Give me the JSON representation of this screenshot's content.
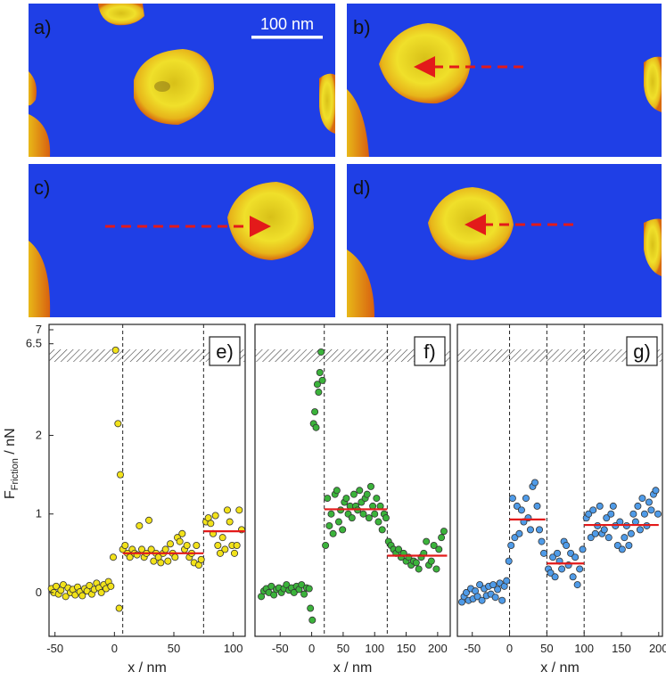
{
  "images": [
    {
      "label": "a)",
      "scalebar": "100 nm"
    },
    {
      "label": "b)"
    },
    {
      "label": "c)"
    },
    {
      "label": "d)"
    }
  ],
  "colors": {
    "substrate": "#1f3fe6",
    "particle": "#e8d21a",
    "arrow": "#e31a1a",
    "mean": "#e31a1a",
    "yellow": "#f2e21a",
    "green": "#3bb33b",
    "blue": "#4f9be8"
  },
  "ylabel_main": "F",
  "ylabel_sub": "Friction",
  "ylabel_unit": " / nN",
  "chart_data": [
    {
      "type": "scatter",
      "label": "e)",
      "xlabel": "x / nm",
      "xlim": [
        -55,
        110
      ],
      "xticks": [
        -50,
        0,
        50,
        100
      ],
      "ylim": [
        -0.5,
        7.0
      ],
      "yticks": [
        "0",
        "1",
        "2",
        "6.5",
        "7"
      ],
      "color": "yellow",
      "vlines": [
        7,
        75
      ],
      "means": [
        {
          "x": [
            7,
            75
          ],
          "y": 0.5
        },
        {
          "x": [
            75,
            110
          ],
          "y": 0.78
        }
      ],
      "points": [
        [
          -53,
          0.05
        ],
        [
          -51,
          0.0
        ],
        [
          -49,
          0.08
        ],
        [
          -47,
          -0.02
        ],
        [
          -45,
          0.03
        ],
        [
          -43,
          0.1
        ],
        [
          -41,
          -0.05
        ],
        [
          -39,
          0.06
        ],
        [
          -37,
          0.0
        ],
        [
          -35,
          0.04
        ],
        [
          -33,
          -0.03
        ],
        [
          -31,
          0.07
        ],
        [
          -29,
          0.01
        ],
        [
          -27,
          -0.04
        ],
        [
          -25,
          0.05
        ],
        [
          -23,
          0.02
        ],
        [
          -21,
          0.09
        ],
        [
          -19,
          -0.02
        ],
        [
          -17,
          0.04
        ],
        [
          -15,
          0.12
        ],
        [
          -13,
          0.06
        ],
        [
          -11,
          0.0
        ],
        [
          -9,
          0.1
        ],
        [
          -7,
          0.05
        ],
        [
          -5,
          0.14
        ],
        [
          -3,
          0.08
        ],
        [
          -1,
          0.45
        ],
        [
          1,
          6.1
        ],
        [
          3,
          2.15
        ],
        [
          4,
          -0.2
        ],
        [
          5,
          1.5
        ],
        [
          7,
          0.55
        ],
        [
          9,
          0.6
        ],
        [
          11,
          0.5
        ],
        [
          13,
          0.45
        ],
        [
          15,
          0.55
        ],
        [
          17,
          0.5
        ],
        [
          19,
          0.48
        ],
        [
          21,
          0.85
        ],
        [
          23,
          0.55
        ],
        [
          25,
          0.45
        ],
        [
          27,
          0.5
        ],
        [
          29,
          0.92
        ],
        [
          31,
          0.55
        ],
        [
          33,
          0.4
        ],
        [
          35,
          0.5
        ],
        [
          37,
          0.45
        ],
        [
          39,
          0.38
        ],
        [
          41,
          0.5
        ],
        [
          43,
          0.55
        ],
        [
          45,
          0.4
        ],
        [
          47,
          0.62
        ],
        [
          49,
          0.5
        ],
        [
          51,
          0.45
        ],
        [
          53,
          0.7
        ],
        [
          55,
          0.65
        ],
        [
          57,
          0.75
        ],
        [
          59,
          0.55
        ],
        [
          61,
          0.6
        ],
        [
          63,
          0.45
        ],
        [
          65,
          0.5
        ],
        [
          67,
          0.38
        ],
        [
          69,
          0.6
        ],
        [
          71,
          0.35
        ],
        [
          73,
          0.42
        ],
        [
          77,
          0.9
        ],
        [
          79,
          0.95
        ],
        [
          81,
          0.88
        ],
        [
          83,
          0.75
        ],
        [
          85,
          0.98
        ],
        [
          87,
          0.6
        ],
        [
          89,
          0.5
        ],
        [
          91,
          0.7
        ],
        [
          93,
          0.55
        ],
        [
          95,
          1.05
        ],
        [
          97,
          0.9
        ],
        [
          99,
          0.6
        ],
        [
          101,
          0.5
        ],
        [
          103,
          0.6
        ],
        [
          105,
          1.05
        ],
        [
          107,
          0.8
        ]
      ]
    },
    {
      "type": "scatter",
      "label": "f)",
      "xlabel": "x / nm",
      "xlim": [
        -90,
        220
      ],
      "xticks": [
        -50,
        0,
        50,
        100,
        150,
        200
      ],
      "ylim": [
        -0.5,
        7.0
      ],
      "yticks": [],
      "color": "green",
      "vlines": [
        20,
        120
      ],
      "means": [
        {
          "x": [
            20,
            120
          ],
          "y": 1.06
        },
        {
          "x": [
            120,
            215
          ],
          "y": 0.47
        }
      ],
      "points": [
        [
          -80,
          -0.05
        ],
        [
          -76,
          0.02
        ],
        [
          -72,
          0.05
        ],
        [
          -68,
          0.0
        ],
        [
          -64,
          0.08
        ],
        [
          -60,
          -0.03
        ],
        [
          -56,
          0.04
        ],
        [
          -52,
          0.06
        ],
        [
          -48,
          0.0
        ],
        [
          -44,
          0.05
        ],
        [
          -40,
          0.1
        ],
        [
          -36,
          0.03
        ],
        [
          -32,
          0.06
        ],
        [
          -28,
          0.0
        ],
        [
          -24,
          0.08
        ],
        [
          -20,
          0.04
        ],
        [
          -16,
          0.1
        ],
        [
          -12,
          -0.02
        ],
        [
          -8,
          0.06
        ],
        [
          -4,
          0.05
        ],
        [
          -2,
          -0.2
        ],
        [
          1,
          -0.35
        ],
        [
          3,
          2.15
        ],
        [
          5,
          2.3
        ],
        [
          7,
          2.1
        ],
        [
          9,
          2.65
        ],
        [
          11,
          2.55
        ],
        [
          13,
          2.8
        ],
        [
          15,
          5.6
        ],
        [
          17,
          2.7
        ],
        [
          22,
          0.6
        ],
        [
          25,
          1.2
        ],
        [
          28,
          0.85
        ],
        [
          31,
          1.0
        ],
        [
          34,
          0.75
        ],
        [
          37,
          1.25
        ],
        [
          40,
          1.3
        ],
        [
          43,
          0.9
        ],
        [
          46,
          1.05
        ],
        [
          49,
          0.8
        ],
        [
          52,
          1.15
        ],
        [
          55,
          1.2
        ],
        [
          58,
          1.0
        ],
        [
          61,
          1.1
        ],
        [
          64,
          0.95
        ],
        [
          67,
          1.25
        ],
        [
          70,
          1.1
        ],
        [
          73,
          1.05
        ],
        [
          76,
          1.3
        ],
        [
          79,
          1.15
        ],
        [
          82,
          1.0
        ],
        [
          85,
          1.2
        ],
        [
          88,
          1.25
        ],
        [
          91,
          0.95
        ],
        [
          94,
          1.35
        ],
        [
          97,
          1.1
        ],
        [
          100,
          1.0
        ],
        [
          103,
          1.2
        ],
        [
          106,
          0.9
        ],
        [
          109,
          1.1
        ],
        [
          112,
          0.8
        ],
        [
          115,
          1.0
        ],
        [
          118,
          0.95
        ],
        [
          122,
          0.65
        ],
        [
          126,
          0.6
        ],
        [
          130,
          0.55
        ],
        [
          134,
          0.5
        ],
        [
          138,
          0.55
        ],
        [
          142,
          0.45
        ],
        [
          146,
          0.5
        ],
        [
          150,
          0.4
        ],
        [
          154,
          0.45
        ],
        [
          158,
          0.35
        ],
        [
          162,
          0.4
        ],
        [
          166,
          0.38
        ],
        [
          170,
          0.3
        ],
        [
          174,
          0.45
        ],
        [
          178,
          0.5
        ],
        [
          182,
          0.65
        ],
        [
          186,
          0.35
        ],
        [
          190,
          0.4
        ],
        [
          194,
          0.6
        ],
        [
          198,
          0.3
        ],
        [
          202,
          0.55
        ],
        [
          206,
          0.7
        ],
        [
          210,
          0.78
        ]
      ]
    },
    {
      "type": "scatter",
      "label": "g)",
      "xlabel": "x / nm",
      "xlim": [
        -70,
        205
      ],
      "xticks": [
        -50,
        0,
        50,
        100,
        150,
        200
      ],
      "ylim": [
        -0.5,
        7.0
      ],
      "yticks": [],
      "color": "blue",
      "vlines": [
        0,
        50,
        100
      ],
      "means": [
        {
          "x": [
            0,
            48
          ],
          "y": 0.93
        },
        {
          "x": [
            50,
            100
          ],
          "y": 0.37
        },
        {
          "x": [
            100,
            200
          ],
          "y": 0.86
        }
      ],
      "points": [
        [
          -64,
          -0.12
        ],
        [
          -61,
          -0.05
        ],
        [
          -58,
          0.0
        ],
        [
          -55,
          -0.1
        ],
        [
          -52,
          0.05
        ],
        [
          -49,
          -0.08
        ],
        [
          -46,
          0.02
        ],
        [
          -43,
          -0.05
        ],
        [
          -40,
          0.1
        ],
        [
          -37,
          -0.1
        ],
        [
          -34,
          0.05
        ],
        [
          -31,
          -0.04
        ],
        [
          -28,
          0.08
        ],
        [
          -25,
          -0.02
        ],
        [
          -22,
          0.1
        ],
        [
          -19,
          -0.06
        ],
        [
          -16,
          0.04
        ],
        [
          -13,
          0.12
        ],
        [
          -10,
          -0.1
        ],
        [
          -7,
          0.08
        ],
        [
          -4,
          0.15
        ],
        [
          -1,
          0.4
        ],
        [
          2,
          0.6
        ],
        [
          4,
          1.2
        ],
        [
          7,
          0.7
        ],
        [
          10,
          1.1
        ],
        [
          13,
          0.75
        ],
        [
          16,
          1.05
        ],
        [
          19,
          0.9
        ],
        [
          22,
          1.2
        ],
        [
          25,
          0.95
        ],
        [
          28,
          0.8
        ],
        [
          31,
          1.35
        ],
        [
          34,
          1.4
        ],
        [
          37,
          1.1
        ],
        [
          40,
          0.8
        ],
        [
          43,
          0.65
        ],
        [
          46,
          0.5
        ],
        [
          52,
          0.3
        ],
        [
          55,
          0.25
        ],
        [
          58,
          0.45
        ],
        [
          61,
          0.2
        ],
        [
          64,
          0.5
        ],
        [
          67,
          0.4
        ],
        [
          70,
          0.3
        ],
        [
          73,
          0.65
        ],
        [
          76,
          0.6
        ],
        [
          79,
          0.35
        ],
        [
          82,
          0.5
        ],
        [
          85,
          0.2
        ],
        [
          88,
          0.45
        ],
        [
          91,
          0.1
        ],
        [
          94,
          0.3
        ],
        [
          98,
          0.55
        ],
        [
          103,
          0.95
        ],
        [
          106,
          1.0
        ],
        [
          109,
          0.7
        ],
        [
          112,
          1.05
        ],
        [
          115,
          0.75
        ],
        [
          118,
          0.85
        ],
        [
          121,
          1.1
        ],
        [
          124,
          0.75
        ],
        [
          127,
          0.8
        ],
        [
          130,
          0.95
        ],
        [
          133,
          0.7
        ],
        [
          136,
          1.0
        ],
        [
          139,
          1.1
        ],
        [
          142,
          0.85
        ],
        [
          145,
          0.6
        ],
        [
          148,
          0.9
        ],
        [
          151,
          0.55
        ],
        [
          154,
          0.7
        ],
        [
          157,
          0.85
        ],
        [
          160,
          0.6
        ],
        [
          163,
          0.75
        ],
        [
          166,
          1.0
        ],
        [
          169,
          0.9
        ],
        [
          172,
          1.1
        ],
        [
          175,
          0.8
        ],
        [
          178,
          1.2
        ],
        [
          181,
          1.0
        ],
        [
          184,
          0.85
        ],
        [
          187,
          1.15
        ],
        [
          190,
          1.05
        ],
        [
          193,
          1.25
        ],
        [
          196,
          1.3
        ],
        [
          199,
          1.0
        ]
      ]
    }
  ]
}
